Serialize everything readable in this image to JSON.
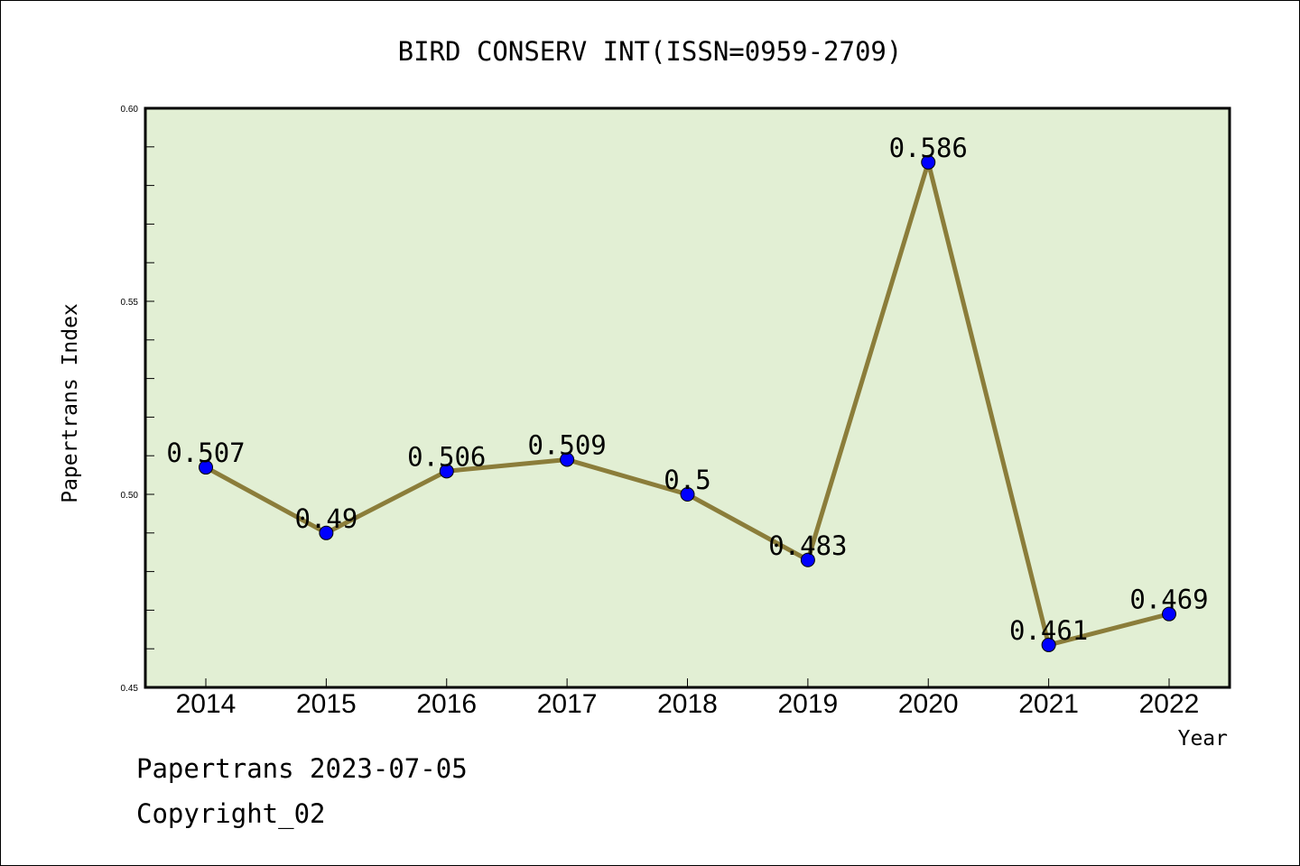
{
  "chart_data": {
    "type": "line",
    "title": "BIRD CONSERV INT(ISSN=0959-2709)",
    "xlabel": "Year",
    "ylabel": "Papertrans Index",
    "categories": [
      "2014",
      "2015",
      "2016",
      "2017",
      "2018",
      "2019",
      "2020",
      "2021",
      "2022"
    ],
    "values": [
      0.507,
      0.49,
      0.506,
      0.509,
      0.5,
      0.483,
      0.586,
      0.461,
      0.469
    ],
    "data_labels": [
      "0.507",
      "0.49",
      "0.506",
      "0.509",
      "0.5",
      "0.483",
      "0.586",
      "0.461",
      "0.469"
    ],
    "ylim": [
      0.45,
      0.6
    ],
    "y_ticks": [
      0.45,
      0.5,
      0.55,
      0.6
    ],
    "y_tick_labels": [
      "0.45",
      "0.50",
      "0.55",
      "0.60"
    ],
    "grid": false,
    "colors": {
      "plot_background": "#e2efd4",
      "line": "#8b7d3a",
      "marker": "#0000ff"
    }
  },
  "footer": {
    "line1": "Papertrans 2023-07-05",
    "line2": "Copyright_02"
  }
}
